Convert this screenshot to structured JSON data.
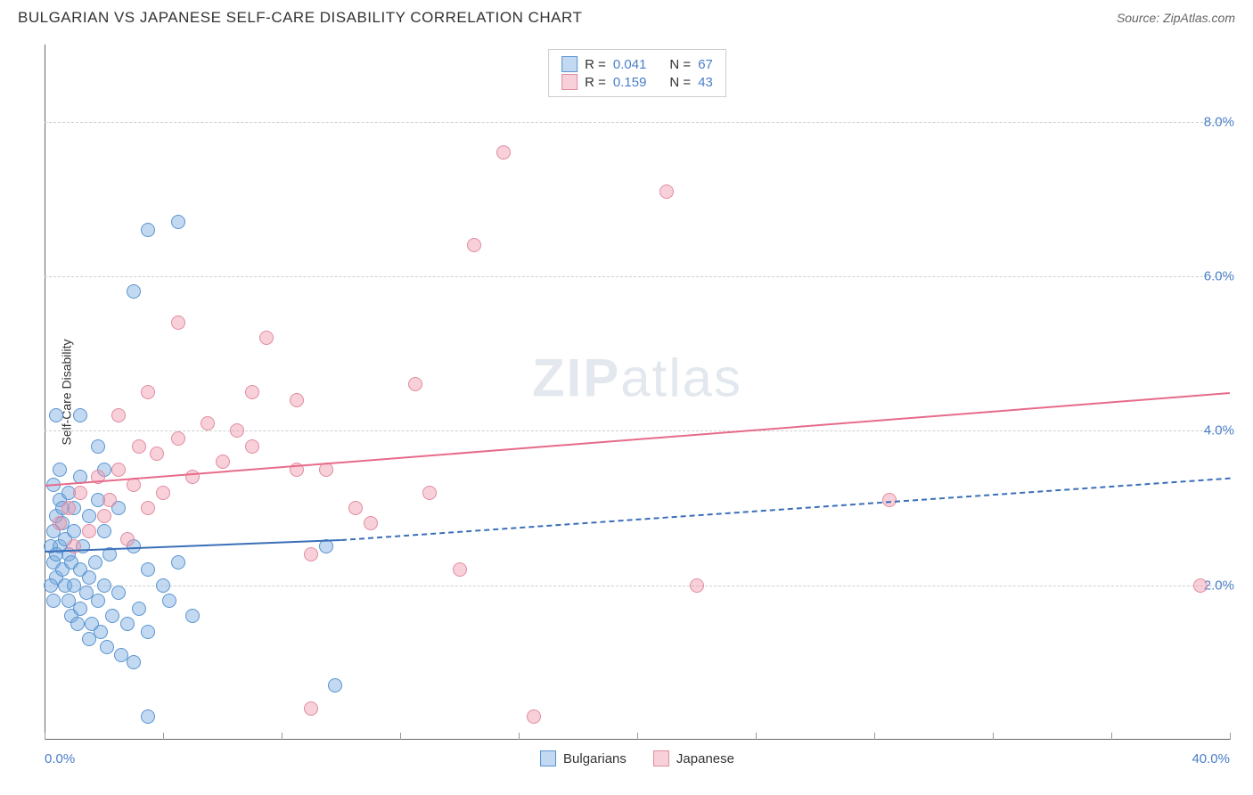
{
  "title": "BULGARIAN VS JAPANESE SELF-CARE DISABILITY CORRELATION CHART",
  "source": "Source: ZipAtlas.com",
  "watermark_bold": "ZIP",
  "watermark_light": "atlas",
  "y_axis_label": "Self-Care Disability",
  "chart": {
    "type": "scatter",
    "xlim": [
      0,
      40
    ],
    "ylim": [
      0,
      9
    ],
    "x_tick_positions": [
      0,
      4,
      8,
      12,
      16,
      20,
      24,
      28,
      32,
      36,
      40
    ],
    "x_label_min": "0.0%",
    "x_label_max": "40.0%",
    "y_gridlines": [
      {
        "value": 2,
        "label": "2.0%"
      },
      {
        "value": 4,
        "label": "4.0%"
      },
      {
        "value": 6,
        "label": "6.0%"
      },
      {
        "value": 8,
        "label": "8.0%"
      }
    ],
    "background_color": "#ffffff",
    "grid_color": "#d0d0d0",
    "axis_color": "#666666",
    "marker_radius": 8,
    "marker_border_width": 1.2,
    "series": [
      {
        "name": "Bulgarians",
        "fill_color": "rgba(120,170,225,0.45)",
        "border_color": "#5a94d0",
        "trend_color": "#3a6fb8",
        "trend_start": {
          "x": 0,
          "y": 2.45
        },
        "trend_solid_end": {
          "x": 10,
          "y": 2.6
        },
        "trend_dash_end": {
          "x": 40,
          "y": 3.4
        },
        "points": [
          {
            "x": 0.2,
            "y": 2.5
          },
          {
            "x": 0.3,
            "y": 2.7
          },
          {
            "x": 0.3,
            "y": 2.3
          },
          {
            "x": 0.4,
            "y": 2.9
          },
          {
            "x": 0.4,
            "y": 2.1
          },
          {
            "x": 0.5,
            "y": 3.1
          },
          {
            "x": 0.5,
            "y": 2.5
          },
          {
            "x": 0.6,
            "y": 2.2
          },
          {
            "x": 0.6,
            "y": 2.8
          },
          {
            "x": 0.7,
            "y": 2.0
          },
          {
            "x": 0.7,
            "y": 2.6
          },
          {
            "x": 0.8,
            "y": 2.4
          },
          {
            "x": 0.8,
            "y": 1.8
          },
          {
            "x": 0.9,
            "y": 2.3
          },
          {
            "x": 0.9,
            "y": 1.6
          },
          {
            "x": 1.0,
            "y": 2.7
          },
          {
            "x": 1.0,
            "y": 2.0
          },
          {
            "x": 1.1,
            "y": 1.5
          },
          {
            "x": 1.2,
            "y": 2.2
          },
          {
            "x": 1.2,
            "y": 1.7
          },
          {
            "x": 1.3,
            "y": 2.5
          },
          {
            "x": 1.4,
            "y": 1.9
          },
          {
            "x": 1.5,
            "y": 1.3
          },
          {
            "x": 1.5,
            "y": 2.1
          },
          {
            "x": 1.6,
            "y": 1.5
          },
          {
            "x": 1.7,
            "y": 2.3
          },
          {
            "x": 1.8,
            "y": 1.8
          },
          {
            "x": 1.9,
            "y": 1.4
          },
          {
            "x": 2.0,
            "y": 2.0
          },
          {
            "x": 2.1,
            "y": 1.2
          },
          {
            "x": 2.2,
            "y": 2.4
          },
          {
            "x": 2.3,
            "y": 1.6
          },
          {
            "x": 2.5,
            "y": 1.9
          },
          {
            "x": 2.6,
            "y": 1.1
          },
          {
            "x": 2.8,
            "y": 1.5
          },
          {
            "x": 3.0,
            "y": 1.0
          },
          {
            "x": 3.2,
            "y": 1.7
          },
          {
            "x": 3.5,
            "y": 1.4
          },
          {
            "x": 0.3,
            "y": 3.3
          },
          {
            "x": 0.5,
            "y": 3.5
          },
          {
            "x": 0.8,
            "y": 3.2
          },
          {
            "x": 1.0,
            "y": 3.0
          },
          {
            "x": 1.2,
            "y": 3.4
          },
          {
            "x": 1.5,
            "y": 2.9
          },
          {
            "x": 1.8,
            "y": 3.1
          },
          {
            "x": 2.0,
            "y": 2.7
          },
          {
            "x": 2.5,
            "y": 3.0
          },
          {
            "x": 0.4,
            "y": 4.2
          },
          {
            "x": 1.2,
            "y": 4.2
          },
          {
            "x": 1.8,
            "y": 3.8
          },
          {
            "x": 2.0,
            "y": 3.5
          },
          {
            "x": 3.0,
            "y": 5.8
          },
          {
            "x": 3.5,
            "y": 6.6
          },
          {
            "x": 4.5,
            "y": 6.7
          },
          {
            "x": 3.0,
            "y": 2.5
          },
          {
            "x": 3.5,
            "y": 2.2
          },
          {
            "x": 4.0,
            "y": 2.0
          },
          {
            "x": 4.2,
            "y": 1.8
          },
          {
            "x": 4.5,
            "y": 2.3
          },
          {
            "x": 5.0,
            "y": 1.6
          },
          {
            "x": 3.5,
            "y": 0.3
          },
          {
            "x": 9.5,
            "y": 2.5
          },
          {
            "x": 9.8,
            "y": 0.7
          },
          {
            "x": 0.2,
            "y": 2.0
          },
          {
            "x": 0.3,
            "y": 1.8
          },
          {
            "x": 0.4,
            "y": 2.4
          },
          {
            "x": 0.6,
            "y": 3.0
          }
        ]
      },
      {
        "name": "Japanese",
        "fill_color": "rgba(240,150,170,0.45)",
        "border_color": "#e08ca0",
        "trend_color": "#e76b8a",
        "trend_start": {
          "x": 0,
          "y": 3.3
        },
        "trend_end": {
          "x": 40,
          "y": 4.5
        },
        "points": [
          {
            "x": 0.5,
            "y": 2.8
          },
          {
            "x": 0.8,
            "y": 3.0
          },
          {
            "x": 1.0,
            "y": 2.5
          },
          {
            "x": 1.2,
            "y": 3.2
          },
          {
            "x": 1.5,
            "y": 2.7
          },
          {
            "x": 1.8,
            "y": 3.4
          },
          {
            "x": 2.0,
            "y": 2.9
          },
          {
            "x": 2.2,
            "y": 3.1
          },
          {
            "x": 2.5,
            "y": 3.5
          },
          {
            "x": 2.8,
            "y": 2.6
          },
          {
            "x": 3.0,
            "y": 3.3
          },
          {
            "x": 3.2,
            "y": 3.8
          },
          {
            "x": 3.5,
            "y": 3.0
          },
          {
            "x": 3.8,
            "y": 3.7
          },
          {
            "x": 4.0,
            "y": 3.2
          },
          {
            "x": 4.5,
            "y": 3.9
          },
          {
            "x": 5.0,
            "y": 3.4
          },
          {
            "x": 5.5,
            "y": 4.1
          },
          {
            "x": 6.0,
            "y": 3.6
          },
          {
            "x": 6.5,
            "y": 4.0
          },
          {
            "x": 7.0,
            "y": 3.8
          },
          {
            "x": 4.5,
            "y": 5.4
          },
          {
            "x": 7.5,
            "y": 5.2
          },
          {
            "x": 7.0,
            "y": 4.5
          },
          {
            "x": 8.5,
            "y": 4.4
          },
          {
            "x": 8.5,
            "y": 3.5
          },
          {
            "x": 9.0,
            "y": 2.4
          },
          {
            "x": 9.5,
            "y": 3.5
          },
          {
            "x": 10.5,
            "y": 3.0
          },
          {
            "x": 11.0,
            "y": 2.8
          },
          {
            "x": 12.5,
            "y": 4.6
          },
          {
            "x": 13.0,
            "y": 3.2
          },
          {
            "x": 14.0,
            "y": 2.2
          },
          {
            "x": 14.5,
            "y": 6.4
          },
          {
            "x": 15.5,
            "y": 7.6
          },
          {
            "x": 16.5,
            "y": 0.3
          },
          {
            "x": 21.0,
            "y": 7.1
          },
          {
            "x": 22.0,
            "y": 2.0
          },
          {
            "x": 28.5,
            "y": 3.1
          },
          {
            "x": 39.0,
            "y": 2.0
          },
          {
            "x": 9.0,
            "y": 0.4
          },
          {
            "x": 2.5,
            "y": 4.2
          },
          {
            "x": 3.5,
            "y": 4.5
          }
        ]
      }
    ]
  },
  "legend_top": [
    {
      "swatch_fill": "rgba(120,170,225,0.45)",
      "swatch_border": "#5a94d0",
      "r_label": "R =",
      "r_value": "0.041",
      "n_label": "N =",
      "n_value": "67"
    },
    {
      "swatch_fill": "rgba(240,150,170,0.45)",
      "swatch_border": "#e08ca0",
      "r_label": "R =",
      "r_value": "0.159",
      "n_label": "N =",
      "n_value": "43"
    }
  ],
  "legend_bottom": [
    {
      "swatch_fill": "rgba(120,170,225,0.45)",
      "swatch_border": "#5a94d0",
      "label": "Bulgarians"
    },
    {
      "swatch_fill": "rgba(240,150,170,0.45)",
      "swatch_border": "#e08ca0",
      "label": "Japanese"
    }
  ]
}
